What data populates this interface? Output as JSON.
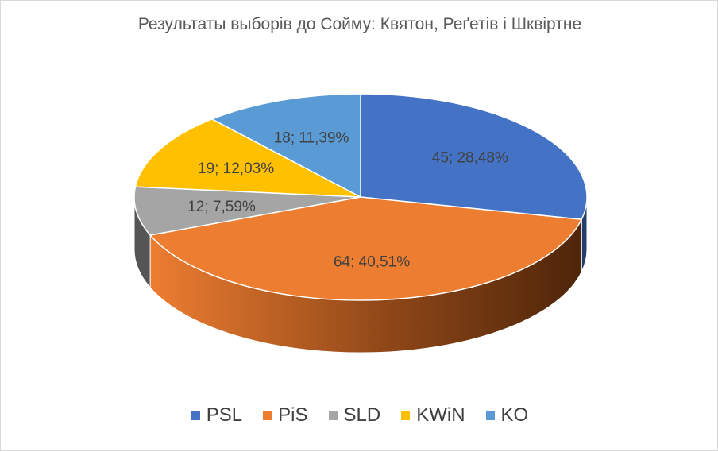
{
  "chart_data": {
    "type": "pie",
    "title": "Результаты выборів до Сойму: Квятон, Реґетів і Шквіртне",
    "series": [
      {
        "name": "PSL",
        "value": 45,
        "label": "45; 28,48%",
        "color": "#4472c4",
        "dark": "#243d6a"
      },
      {
        "name": "PiS",
        "value": 64,
        "label": "64; 40,51%",
        "color": "#ed7d31",
        "dark": "#5c2f10"
      },
      {
        "name": "SLD",
        "value": 12,
        "label": "12; 7,59%",
        "color": "#a5a5a5",
        "dark": "#555555"
      },
      {
        "name": "KWiN",
        "value": 19,
        "label": "19; 12,03%",
        "color": "#ffc000",
        "dark": "#8a6400"
      },
      {
        "name": "KO",
        "value": 18,
        "label": "18; 11,39%",
        "color": "#5b9bd5",
        "dark": "#2e5477"
      }
    ],
    "legend_position": "bottom"
  }
}
